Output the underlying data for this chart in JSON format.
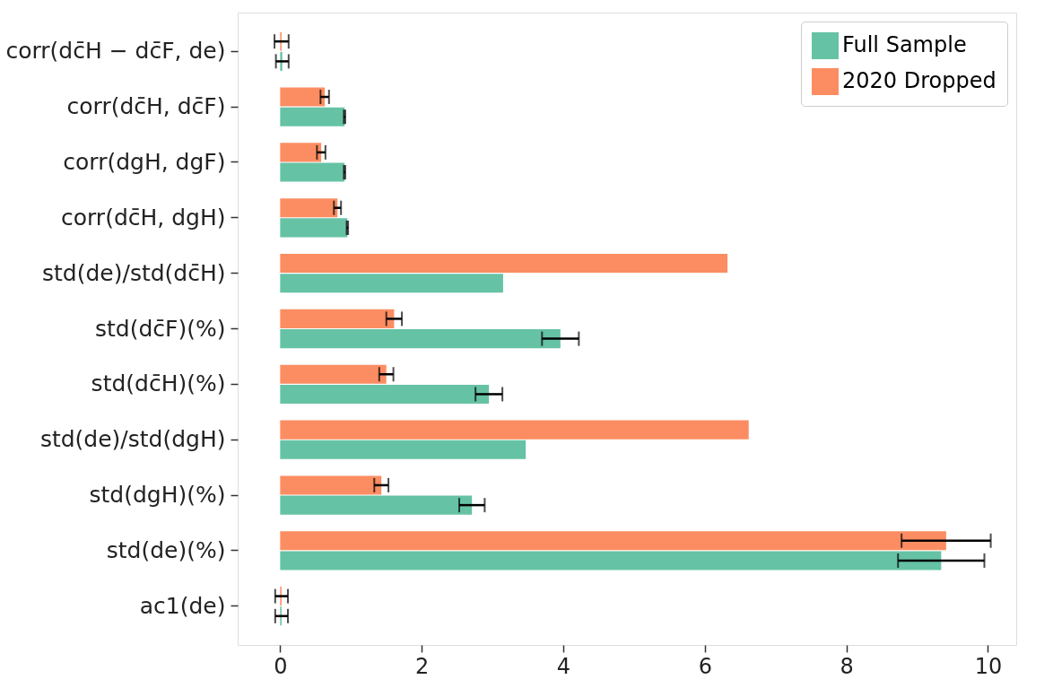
{
  "chart_data": {
    "type": "bar",
    "orientation": "horizontal",
    "categories": [
      "corr(dc̄H − dc̄F, de)",
      "corr(dc̄H, dc̄F)",
      "corr(dgH, dgF)",
      "corr(dc̄H, dgH)",
      "std(de)/std(dc̄H)",
      "std(dc̄F)(%)",
      "std(dc̄H)(%)",
      "std(de)/std(dgH)",
      "std(dgH)(%)",
      "std(de)(%)",
      "ac1(de)"
    ],
    "series": [
      {
        "name": "Full Sample",
        "color": "#66c2a5",
        "values": [
          0.03,
          0.91,
          0.91,
          0.95,
          3.15,
          3.96,
          2.95,
          3.47,
          2.71,
          9.34,
          0.02
        ],
        "errors": [
          0.09,
          0.01,
          0.01,
          0.01,
          null,
          0.26,
          0.19,
          null,
          0.18,
          0.61,
          0.09
        ]
      },
      {
        "name": "2020 Dropped",
        "color": "#fc8d62",
        "values": [
          0.02,
          0.63,
          0.58,
          0.81,
          6.32,
          1.61,
          1.5,
          6.62,
          1.43,
          9.41,
          0.02
        ],
        "errors": [
          0.1,
          0.06,
          0.06,
          0.05,
          null,
          0.11,
          0.1,
          null,
          0.1,
          0.63,
          0.09
        ]
      }
    ],
    "xlim": [
      -0.6,
      10.4
    ],
    "xticks": [
      0,
      2,
      4,
      6,
      8,
      10
    ],
    "grid": false,
    "legend": "top right"
  }
}
